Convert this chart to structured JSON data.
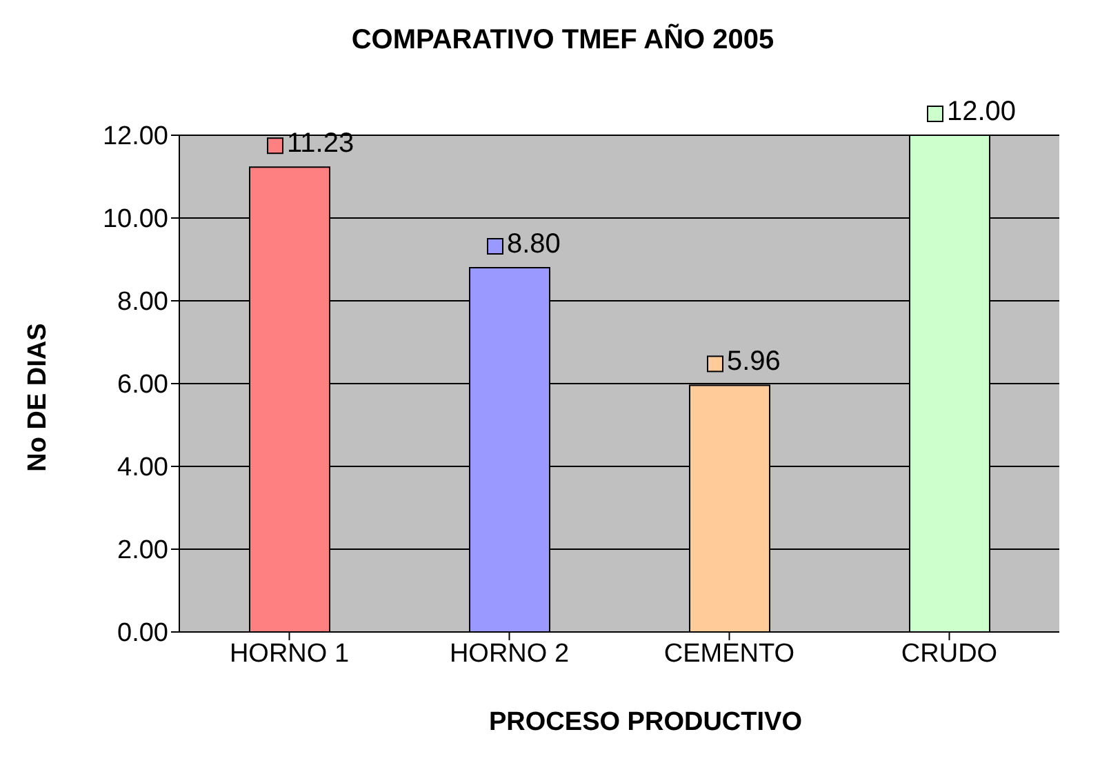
{
  "chart_data": {
    "type": "bar",
    "title": "COMPARATIVO TMEF AÑO 2005",
    "xlabel": "PROCESO PRODUCTIVO",
    "ylabel": "No DE DIAS",
    "categories": [
      "HORNO 1",
      "HORNO 2",
      "CEMENTO",
      "CRUDO"
    ],
    "values": [
      11.23,
      8.8,
      5.96,
      12.0
    ],
    "colors": [
      "#ff8080",
      "#9999ff",
      "#ffcc99",
      "#ccffcc"
    ],
    "value_labels": [
      "11.23",
      "8.80",
      "5.96",
      "12.00"
    ],
    "ylim": [
      0,
      12
    ],
    "yticks": [
      {
        "value": 0,
        "label": "0.00"
      },
      {
        "value": 2,
        "label": "2.00"
      },
      {
        "value": 4,
        "label": "4.00"
      },
      {
        "value": 6,
        "label": "6.00"
      },
      {
        "value": 8,
        "label": "8.00"
      },
      {
        "value": 10,
        "label": "10.00"
      },
      {
        "value": 12,
        "label": "12.00"
      }
    ],
    "grid": "y",
    "legend": false
  }
}
